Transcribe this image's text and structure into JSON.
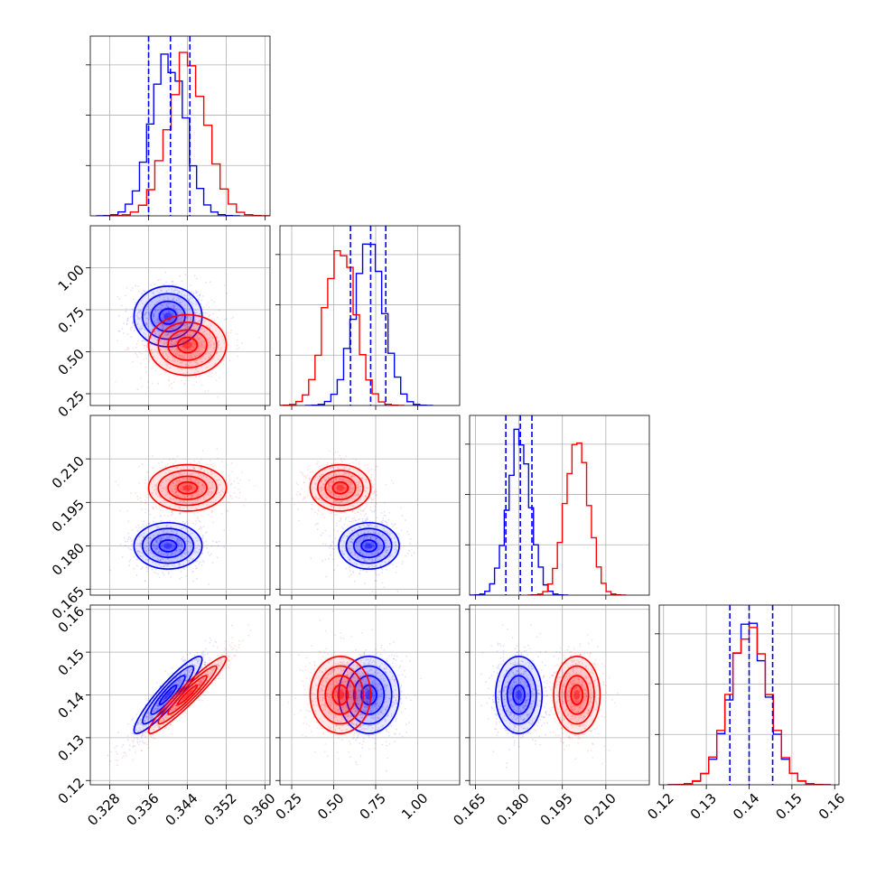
{
  "chart_data": {
    "type": "corner",
    "grid": true,
    "colors": {
      "series_a": "#0000ff",
      "series_b": "#ff0000"
    },
    "params": [
      {
        "range": [
          0.324,
          0.361
        ],
        "ticks": [
          "0.328",
          "0.336",
          "0.344",
          "0.352",
          "0.360"
        ],
        "tick_values": [
          0.328,
          0.336,
          0.344,
          0.352,
          0.36
        ]
      },
      {
        "range": [
          0.18,
          1.25
        ],
        "ticks": [
          "0.25",
          "0.50",
          "0.75",
          "1.00"
        ],
        "tick_values": [
          0.25,
          0.5,
          0.75,
          1.0
        ]
      },
      {
        "range": [
          0.163,
          0.225
        ],
        "ticks": [
          "0.165",
          "0.180",
          "0.195",
          "0.210"
        ],
        "tick_values": [
          0.165,
          0.18,
          0.195,
          0.21
        ]
      },
      {
        "range": [
          0.119,
          0.161
        ],
        "ticks": [
          "0.12",
          "0.13",
          "0.14",
          "0.15",
          "0.16"
        ],
        "tick_values": [
          0.12,
          0.13,
          0.14,
          0.15,
          0.16
        ]
      }
    ],
    "series": [
      {
        "color": "#0000ff",
        "means": [
          0.34,
          0.71,
          0.18,
          0.14
        ],
        "stds": [
          0.0035,
          0.09,
          0.004,
          0.0045
        ],
        "corr": [
          [
            1,
            0,
            0,
            0.92
          ],
          [
            0,
            1,
            0,
            0
          ],
          [
            0,
            0,
            1,
            0
          ],
          [
            0.92,
            0,
            0,
            1
          ]
        ]
      },
      {
        "color": "#ff0000",
        "means": [
          0.344,
          0.54,
          0.2,
          0.14
        ],
        "stds": [
          0.004,
          0.09,
          0.004,
          0.0045
        ],
        "corr": [
          [
            1,
            0,
            0,
            0.95
          ],
          [
            0,
            1,
            0,
            0
          ],
          [
            0,
            0,
            1,
            0
          ],
          [
            0.95,
            0,
            0,
            1
          ]
        ]
      }
    ],
    "quantile_lines": [
      [
        0.336,
        0.3405,
        0.3445
      ],
      [
        0.6,
        0.72,
        0.81
      ],
      [
        0.1755,
        0.1805,
        0.1845
      ],
      [
        0.1355,
        0.14,
        0.1455
      ]
    ]
  }
}
